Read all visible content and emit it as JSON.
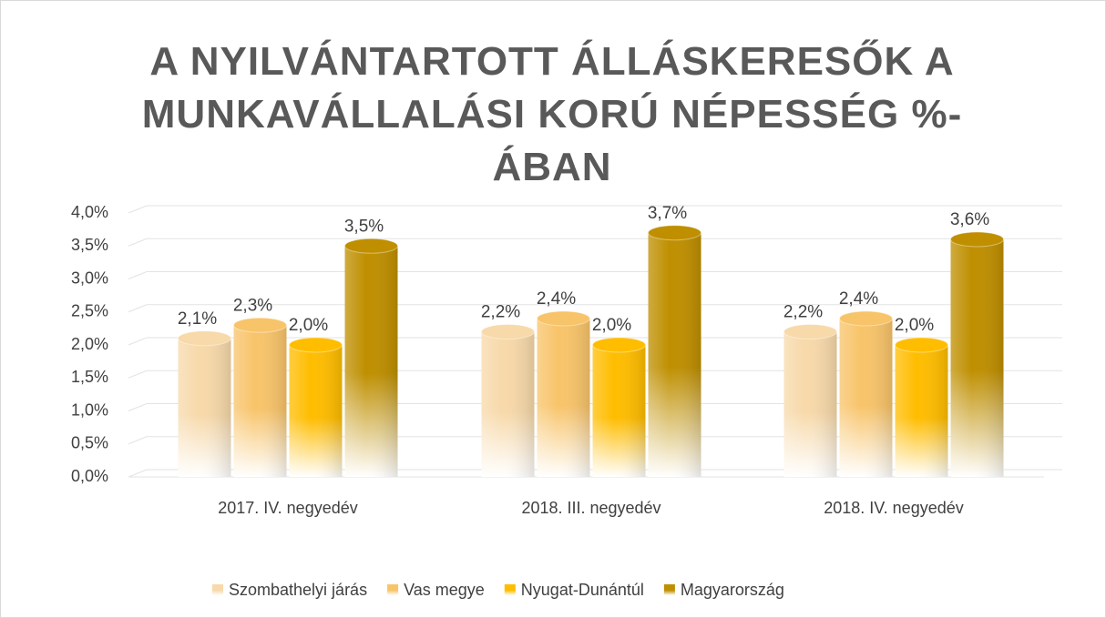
{
  "chart_data": {
    "type": "bar",
    "title": "A NYILVÁNTARTOTT ÁLLÁSKERESŐK A MUNKAVÁLLALÁSI KORÚ NÉPESSÉG %-ÁBAN",
    "categories": [
      "2017. IV. negyedév",
      "2018. III. negyedév",
      "2018. IV. negyedév"
    ],
    "series": [
      {
        "name": "Szombathelyi járás",
        "color": "#f7d9aa",
        "values": [
          2.1,
          2.2,
          2.2
        ],
        "value_labels": [
          "2,1%",
          "2,2%",
          "2,2%"
        ]
      },
      {
        "name": "Vas megye",
        "color": "#f8c46a",
        "values": [
          2.3,
          2.4,
          2.4
        ],
        "value_labels": [
          "2,3%",
          "2,4%",
          "2,4%"
        ]
      },
      {
        "name": "Nyugat-Dunántúl",
        "color": "#ffbd00",
        "values": [
          2.0,
          2.0,
          2.0
        ],
        "value_labels": [
          "2,0%",
          "2,0%",
          "2,0%"
        ]
      },
      {
        "name": "Magyarország",
        "color": "#bf8f00",
        "values": [
          3.5,
          3.7,
          3.6
        ],
        "value_labels": [
          "3,5%",
          "3,7%",
          "3,6%"
        ]
      }
    ],
    "ylim": [
      0,
      4
    ],
    "yticks": [
      {
        "value": 0,
        "label": "0,0%"
      },
      {
        "value": 0.5,
        "label": "0,5%"
      },
      {
        "value": 1,
        "label": "1,0%"
      },
      {
        "value": 1.5,
        "label": "1,5%"
      },
      {
        "value": 2,
        "label": "2,0%"
      },
      {
        "value": 2.5,
        "label": "2,5%"
      },
      {
        "value": 3,
        "label": "3,0%"
      },
      {
        "value": 3.5,
        "label": "3,5%"
      },
      {
        "value": 4,
        "label": "4,0%"
      }
    ],
    "grid": true,
    "legend": "bottom"
  }
}
